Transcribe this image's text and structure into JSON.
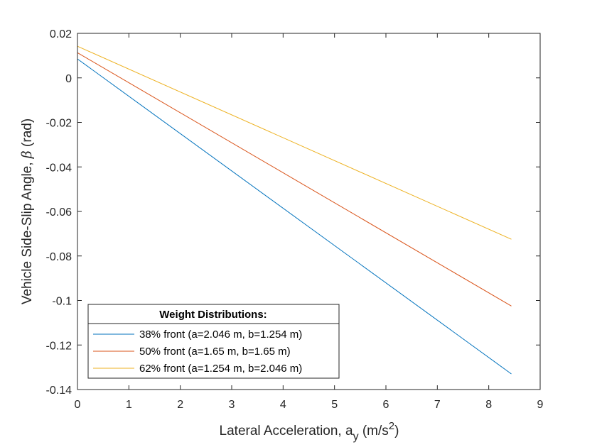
{
  "chart_data": {
    "type": "line",
    "xlabel_main": "Lateral Acceleration, a",
    "xlabel_sub": "y",
    "xlabel_unit_pre": " (m/s",
    "xlabel_sup": "2",
    "xlabel_unit_post": ")",
    "ylabel_main": "Vehicle Side-Slip Angle, ",
    "ylabel_symbol": "β",
    "ylabel_unit": " (rad)",
    "xlim": [
      0,
      9
    ],
    "ylim": [
      -0.14,
      0.02
    ],
    "x_ticks": [
      0,
      1,
      2,
      3,
      4,
      5,
      6,
      7,
      8,
      9
    ],
    "x_tick_labels": [
      "0",
      "1",
      "2",
      "3",
      "4",
      "5",
      "6",
      "7",
      "8",
      "9"
    ],
    "y_ticks": [
      0.02,
      0,
      -0.02,
      -0.04,
      -0.06,
      -0.08,
      -0.1,
      -0.12,
      -0.14
    ],
    "y_tick_labels": [
      "0.02",
      "0",
      "-0.02",
      "-0.04",
      "-0.06",
      "-0.08",
      "-0.1",
      "-0.12",
      "-0.14"
    ],
    "grid": false,
    "legend_title": "Weight Distributions:",
    "legend_position": "bottom-left",
    "series": [
      {
        "name": "38% front (a=2.046 m, b=1.254 m)",
        "color": "#0072bd",
        "x": [
          0,
          8.44
        ],
        "y": [
          0.0085,
          -0.133
        ]
      },
      {
        "name": "50% front (a=1.65 m, b=1.65 m)",
        "color": "#d95319",
        "x": [
          0,
          8.44
        ],
        "y": [
          0.0113,
          -0.1025
        ]
      },
      {
        "name": "62% front (a=1.254 m, b=2.046 m)",
        "color": "#edb120",
        "x": [
          0,
          8.44
        ],
        "y": [
          0.0142,
          -0.0725
        ]
      }
    ]
  }
}
